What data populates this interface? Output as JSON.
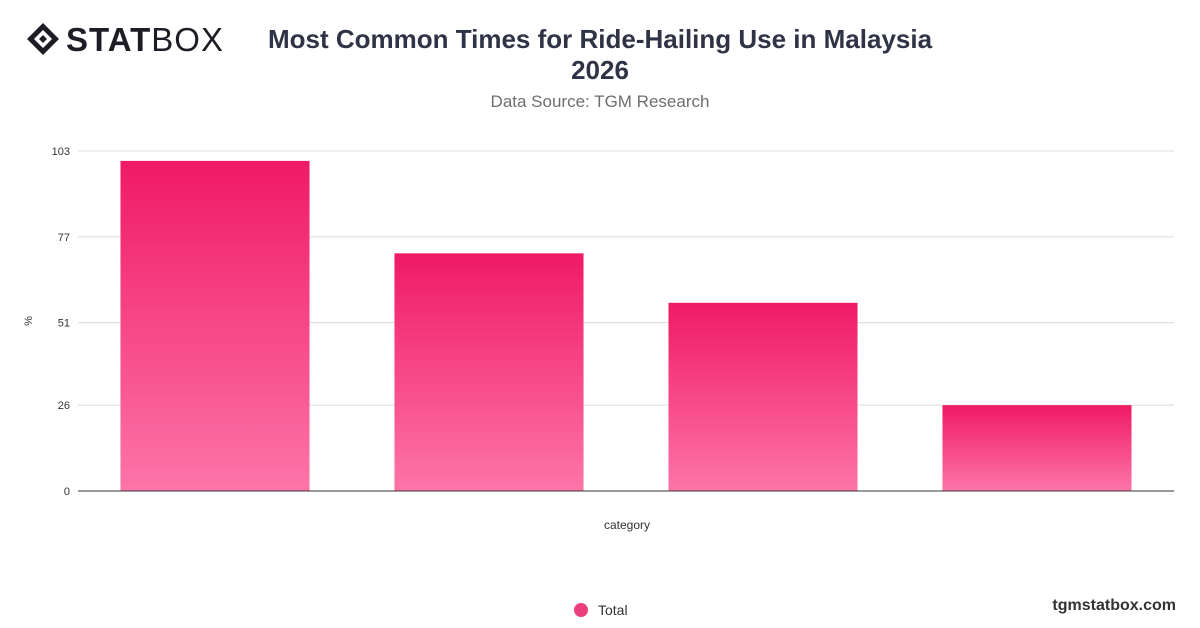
{
  "brand": {
    "logo_bold": "STAT",
    "logo_light": "BOX",
    "site": "tgmstatbox.com"
  },
  "header": {
    "title_line1": "Most Common Times for Ride-Hailing Use in Malaysia",
    "title_line2": "2026",
    "subtitle": "Data Source: TGM Research"
  },
  "chart_data": {
    "type": "bar",
    "categories": [
      "",
      "",
      "",
      ""
    ],
    "series": [
      {
        "name": "Total",
        "values": [
          100,
          72,
          57,
          26
        ]
      }
    ],
    "xlabel": "category",
    "ylabel": "%",
    "yticks": [
      0,
      26,
      51,
      77,
      103
    ],
    "ylim": [
      0,
      103
    ],
    "grid": true,
    "legend": "bottom-center",
    "colors": {
      "bar_top": "#f01a65",
      "bar_bottom": "#fd75a8",
      "legend": "#ec3f7e"
    }
  }
}
